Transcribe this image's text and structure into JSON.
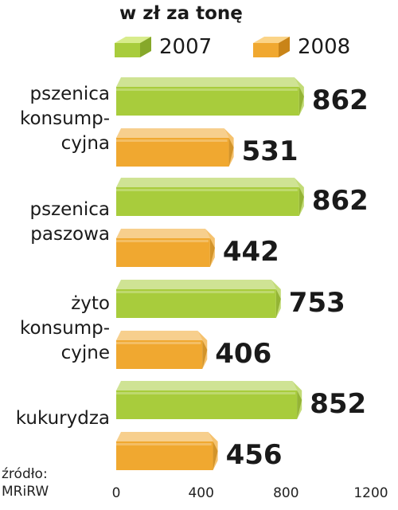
{
  "chart_data": {
    "type": "bar",
    "orientation": "horizontal",
    "unit_label": "w zł za tonę",
    "categories": [
      [
        "pszenica",
        "konsump-",
        "cyjna"
      ],
      [
        "pszenica",
        "paszowa"
      ],
      [
        "żyto",
        "konsump-",
        "cyjne"
      ],
      [
        "kukurydza"
      ]
    ],
    "series": [
      {
        "name": "2007",
        "color": "#a8cc3c",
        "values": [
          862,
          862,
          753,
          852
        ]
      },
      {
        "name": "2008",
        "color": "#f0a830",
        "values": [
          531,
          442,
          406,
          456
        ]
      }
    ],
    "data_labels": [
      [
        "862",
        "531"
      ],
      [
        "862",
        "442"
      ],
      [
        "753",
        "406"
      ],
      [
        "852",
        "456"
      ]
    ],
    "x_ticks": [
      "0",
      "400",
      "800",
      "1200"
    ],
    "xlim": [
      0,
      1200
    ],
    "legend_position": "top",
    "source_lines": [
      "źródło:",
      "MRiRW"
    ]
  }
}
